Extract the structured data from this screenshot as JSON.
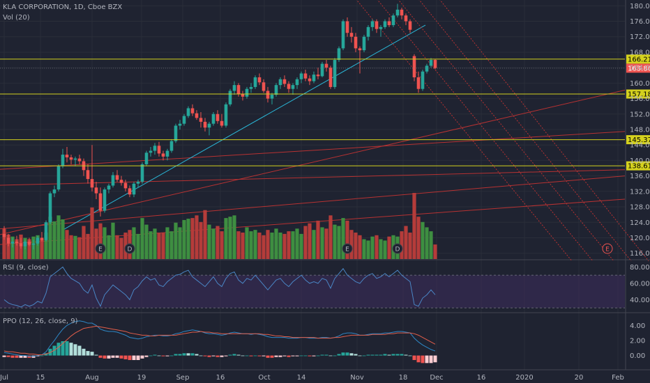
{
  "header": {
    "title": "KLA CORPORATION, 1D, Cboe BZX",
    "vol_label": "Vol (20)"
  },
  "rsi_label": "RSI (9, close)",
  "ppo_label": "PPO (12, 26, close, 9)",
  "colors": {
    "bg": "#1f2331",
    "grid": "#2a2e39",
    "up": "#26a69a",
    "down": "#ef5350",
    "vol_up": "#3e8e41",
    "vol_down": "#b53c3a",
    "hline": "#d4d11e",
    "trend_red": "#b83232",
    "trend_cyan": "#2ab6d6",
    "rsi_band": "#3c2d5c",
    "rsi_line": "#4a86c5",
    "ppo_line": "#2e89c8",
    "ppo_signal": "#e35e4a"
  },
  "chart_data": [
    {
      "type": "candlestick",
      "title": "KLA CORPORATION, 1D, Cboe BZX",
      "y_ticks": [
        "180.00",
        "176.00",
        "172.00",
        "168.00",
        "164.00",
        "160.00",
        "156.00",
        "152.00",
        "148.00",
        "144.00",
        "140.00",
        "136.00",
        "132.00",
        "128.00",
        "124.00",
        "120.00",
        "116.00"
      ],
      "ylim": [
        114.5,
        181.5
      ],
      "x_ticks": [
        "Jul",
        "15",
        "Aug",
        "19",
        "Sep",
        "16",
        "Oct",
        "14",
        "Nov",
        "18",
        "Dec",
        "16",
        "2020",
        "20",
        "Feb"
      ],
      "candles": [
        {
          "o": 121.0,
          "h": 123.0,
          "l": 119.5,
          "c": 120.2
        },
        {
          "o": 120.0,
          "h": 121.0,
          "l": 117.8,
          "c": 118.5
        },
        {
          "o": 118.5,
          "h": 120.0,
          "l": 117.5,
          "c": 119.0
        },
        {
          "o": 119.0,
          "h": 120.5,
          "l": 118.0,
          "c": 118.6
        },
        {
          "o": 118.6,
          "h": 120.0,
          "l": 117.2,
          "c": 117.8
        },
        {
          "o": 117.8,
          "h": 119.5,
          "l": 117.0,
          "c": 119.0
        },
        {
          "o": 119.0,
          "h": 120.0,
          "l": 117.8,
          "c": 118.2
        },
        {
          "o": 118.2,
          "h": 119.5,
          "l": 117.0,
          "c": 118.5
        },
        {
          "o": 118.5,
          "h": 120.5,
          "l": 118.0,
          "c": 120.0
        },
        {
          "o": 120.0,
          "h": 121.5,
          "l": 119.0,
          "c": 119.4
        },
        {
          "o": 119.4,
          "h": 124.5,
          "l": 119.0,
          "c": 124.0
        },
        {
          "o": 124.0,
          "h": 132.0,
          "l": 123.5,
          "c": 131.5
        },
        {
          "o": 131.5,
          "h": 133.5,
          "l": 130.5,
          "c": 132.5
        },
        {
          "o": 132.5,
          "h": 139.0,
          "l": 132.0,
          "c": 138.5
        },
        {
          "o": 138.5,
          "h": 143.0,
          "l": 138.0,
          "c": 141.5
        },
        {
          "o": 141.5,
          "h": 143.5,
          "l": 139.5,
          "c": 140.8
        },
        {
          "o": 140.8,
          "h": 141.5,
          "l": 139.0,
          "c": 140.2
        },
        {
          "o": 140.2,
          "h": 141.0,
          "l": 138.5,
          "c": 140.5
        },
        {
          "o": 140.5,
          "h": 141.5,
          "l": 139.0,
          "c": 139.8
        },
        {
          "o": 139.8,
          "h": 140.5,
          "l": 136.0,
          "c": 137.5
        },
        {
          "o": 137.5,
          "h": 139.0,
          "l": 134.0,
          "c": 135.2
        },
        {
          "o": 135.2,
          "h": 144.0,
          "l": 132.0,
          "c": 133.0
        },
        {
          "o": 133.0,
          "h": 134.5,
          "l": 130.0,
          "c": 131.5
        },
        {
          "o": 131.5,
          "h": 133.0,
          "l": 125.5,
          "c": 127.0
        },
        {
          "o": 127.0,
          "h": 133.0,
          "l": 126.5,
          "c": 132.5
        },
        {
          "o": 132.5,
          "h": 134.0,
          "l": 131.5,
          "c": 133.5
        },
        {
          "o": 133.5,
          "h": 137.0,
          "l": 133.0,
          "c": 136.2
        },
        {
          "o": 136.2,
          "h": 137.5,
          "l": 134.5,
          "c": 135.0
        },
        {
          "o": 135.0,
          "h": 136.0,
          "l": 133.5,
          "c": 134.2
        },
        {
          "o": 134.2,
          "h": 135.0,
          "l": 132.0,
          "c": 132.8
        },
        {
          "o": 132.8,
          "h": 133.5,
          "l": 130.5,
          "c": 131.2
        },
        {
          "o": 131.2,
          "h": 134.5,
          "l": 130.5,
          "c": 134.0
        },
        {
          "o": 134.0,
          "h": 135.0,
          "l": 133.0,
          "c": 134.5
        },
        {
          "o": 134.5,
          "h": 139.5,
          "l": 134.0,
          "c": 139.0
        },
        {
          "o": 139.0,
          "h": 142.5,
          "l": 138.5,
          "c": 142.0
        },
        {
          "o": 142.0,
          "h": 143.5,
          "l": 141.0,
          "c": 142.5
        },
        {
          "o": 142.5,
          "h": 144.5,
          "l": 141.5,
          "c": 143.8
        },
        {
          "o": 143.8,
          "h": 144.8,
          "l": 141.0,
          "c": 141.8
        },
        {
          "o": 141.8,
          "h": 142.5,
          "l": 140.0,
          "c": 141.0
        },
        {
          "o": 141.0,
          "h": 143.0,
          "l": 140.0,
          "c": 142.5
        },
        {
          "o": 142.5,
          "h": 145.5,
          "l": 142.0,
          "c": 145.0
        },
        {
          "o": 145.0,
          "h": 149.5,
          "l": 144.5,
          "c": 149.0
        },
        {
          "o": 149.0,
          "h": 150.5,
          "l": 148.0,
          "c": 149.5
        },
        {
          "o": 149.5,
          "h": 152.0,
          "l": 149.0,
          "c": 151.5
        },
        {
          "o": 151.5,
          "h": 154.0,
          "l": 151.0,
          "c": 153.5
        },
        {
          "o": 153.5,
          "h": 154.5,
          "l": 151.5,
          "c": 152.2
        },
        {
          "o": 152.2,
          "h": 153.0,
          "l": 150.5,
          "c": 151.0
        },
        {
          "o": 151.0,
          "h": 152.5,
          "l": 148.5,
          "c": 150.0
        },
        {
          "o": 150.0,
          "h": 151.0,
          "l": 147.5,
          "c": 148.5
        },
        {
          "o": 148.5,
          "h": 150.0,
          "l": 146.5,
          "c": 149.5
        },
        {
          "o": 149.5,
          "h": 152.5,
          "l": 149.0,
          "c": 152.0
        },
        {
          "o": 152.0,
          "h": 153.0,
          "l": 149.5,
          "c": 150.2
        },
        {
          "o": 150.2,
          "h": 152.0,
          "l": 148.5,
          "c": 149.0
        },
        {
          "o": 149.0,
          "h": 155.0,
          "l": 148.5,
          "c": 154.5
        },
        {
          "o": 154.5,
          "h": 158.5,
          "l": 154.0,
          "c": 158.0
        },
        {
          "o": 158.0,
          "h": 160.5,
          "l": 157.0,
          "c": 159.5
        },
        {
          "o": 159.5,
          "h": 160.0,
          "l": 156.5,
          "c": 157.2
        },
        {
          "o": 157.2,
          "h": 158.0,
          "l": 155.5,
          "c": 156.5
        },
        {
          "o": 156.5,
          "h": 159.0,
          "l": 156.0,
          "c": 158.5
        },
        {
          "o": 158.5,
          "h": 160.0,
          "l": 157.5,
          "c": 159.0
        },
        {
          "o": 159.0,
          "h": 162.0,
          "l": 158.5,
          "c": 161.5
        },
        {
          "o": 161.5,
          "h": 162.5,
          "l": 159.5,
          "c": 160.2
        },
        {
          "o": 160.2,
          "h": 161.0,
          "l": 157.5,
          "c": 158.0
        },
        {
          "o": 158.0,
          "h": 159.0,
          "l": 155.0,
          "c": 156.0
        },
        {
          "o": 156.0,
          "h": 157.5,
          "l": 154.5,
          "c": 157.0
        },
        {
          "o": 157.0,
          "h": 160.0,
          "l": 156.5,
          "c": 159.5
        },
        {
          "o": 159.5,
          "h": 161.5,
          "l": 158.5,
          "c": 161.0
        },
        {
          "o": 161.0,
          "h": 162.0,
          "l": 159.0,
          "c": 159.8
        },
        {
          "o": 159.8,
          "h": 160.5,
          "l": 157.5,
          "c": 158.5
        },
        {
          "o": 158.5,
          "h": 160.0,
          "l": 157.0,
          "c": 159.5
        },
        {
          "o": 159.5,
          "h": 161.5,
          "l": 158.5,
          "c": 161.0
        },
        {
          "o": 161.0,
          "h": 163.0,
          "l": 160.0,
          "c": 162.5
        },
        {
          "o": 162.5,
          "h": 163.5,
          "l": 160.5,
          "c": 161.2
        },
        {
          "o": 161.2,
          "h": 162.0,
          "l": 159.5,
          "c": 160.5
        },
        {
          "o": 160.5,
          "h": 163.0,
          "l": 160.0,
          "c": 162.2
        },
        {
          "o": 162.2,
          "h": 164.0,
          "l": 161.0,
          "c": 161.8
        },
        {
          "o": 161.8,
          "h": 165.5,
          "l": 161.5,
          "c": 165.0
        },
        {
          "o": 165.0,
          "h": 166.0,
          "l": 163.0,
          "c": 164.0
        },
        {
          "o": 164.0,
          "h": 164.5,
          "l": 158.5,
          "c": 159.0
        },
        {
          "o": 159.0,
          "h": 166.5,
          "l": 158.5,
          "c": 166.0
        },
        {
          "o": 166.0,
          "h": 169.5,
          "l": 165.5,
          "c": 169.0
        },
        {
          "o": 169.0,
          "h": 176.5,
          "l": 168.5,
          "c": 176.0
        },
        {
          "o": 176.0,
          "h": 177.0,
          "l": 172.0,
          "c": 173.0
        },
        {
          "o": 173.0,
          "h": 174.5,
          "l": 170.5,
          "c": 172.0
        },
        {
          "o": 172.0,
          "h": 173.0,
          "l": 168.0,
          "c": 169.0
        },
        {
          "o": 169.0,
          "h": 169.5,
          "l": 162.5,
          "c": 168.5
        },
        {
          "o": 168.5,
          "h": 172.5,
          "l": 168.0,
          "c": 172.0
        },
        {
          "o": 172.0,
          "h": 175.0,
          "l": 171.0,
          "c": 174.5
        },
        {
          "o": 174.5,
          "h": 176.5,
          "l": 173.5,
          "c": 176.0
        },
        {
          "o": 176.0,
          "h": 176.5,
          "l": 173.0,
          "c": 174.0
        },
        {
          "o": 174.0,
          "h": 175.0,
          "l": 172.0,
          "c": 174.5
        },
        {
          "o": 174.5,
          "h": 176.5,
          "l": 174.0,
          "c": 176.0
        },
        {
          "o": 176.0,
          "h": 177.0,
          "l": 174.5,
          "c": 175.0
        },
        {
          "o": 175.0,
          "h": 178.0,
          "l": 174.5,
          "c": 177.5
        },
        {
          "o": 177.5,
          "h": 180.5,
          "l": 177.0,
          "c": 179.0
        },
        {
          "o": 179.0,
          "h": 179.5,
          "l": 176.5,
          "c": 177.5
        },
        {
          "o": 177.5,
          "h": 178.0,
          "l": 175.0,
          "c": 176.0
        },
        {
          "o": 176.0,
          "h": 176.5,
          "l": 173.0,
          "c": 173.8
        },
        {
          "o": 167.0,
          "h": 167.5,
          "l": 160.5,
          "c": 161.5
        },
        {
          "o": 161.5,
          "h": 163.0,
          "l": 157.5,
          "c": 158.5
        },
        {
          "o": 158.5,
          "h": 163.5,
          "l": 158.0,
          "c": 163.0
        },
        {
          "o": 163.0,
          "h": 165.0,
          "l": 162.5,
          "c": 164.5
        },
        {
          "o": 164.5,
          "h": 166.5,
          "l": 164.0,
          "c": 166.0
        },
        {
          "o": 166.0,
          "h": 166.2,
          "l": 163.6,
          "c": 163.9
        }
      ],
      "price_levels": [
        {
          "value": 166.21,
          "label": "166.21"
        },
        {
          "value": 163.86,
          "label": "163.86"
        },
        {
          "value": 157.18,
          "label": "157.18"
        },
        {
          "value": 145.37,
          "label": "145.37"
        },
        {
          "value": 138.61,
          "label": "138.61"
        }
      ],
      "current_price": 163.86,
      "volume": [
        0.46,
        0.37,
        0.34,
        0.3,
        0.37,
        0.32,
        0.3,
        0.34,
        0.36,
        0.3,
        0.4,
        0.64,
        0.57,
        0.66,
        0.6,
        0.44,
        0.36,
        0.35,
        0.33,
        0.5,
        0.38,
        0.78,
        0.46,
        0.54,
        0.48,
        0.36,
        0.55,
        0.36,
        0.32,
        0.4,
        0.44,
        0.48,
        0.38,
        0.62,
        0.52,
        0.42,
        0.46,
        0.4,
        0.4,
        0.48,
        0.42,
        0.55,
        0.48,
        0.59,
        0.61,
        0.62,
        0.66,
        0.56,
        0.74,
        0.52,
        0.46,
        0.5,
        0.42,
        0.62,
        0.64,
        0.66,
        0.42,
        0.4,
        0.48,
        0.42,
        0.44,
        0.4,
        0.36,
        0.44,
        0.4,
        0.46,
        0.4,
        0.38,
        0.42,
        0.42,
        0.46,
        0.38,
        0.5,
        0.54,
        0.44,
        0.58,
        0.48,
        0.46,
        0.66,
        0.52,
        0.5,
        0.62,
        0.58,
        0.44,
        0.4,
        0.36,
        0.3,
        0.28,
        0.34,
        0.36,
        0.3,
        0.28,
        0.34,
        0.36,
        0.34,
        0.42,
        0.5,
        0.4,
        1.0,
        0.64,
        0.56,
        0.48,
        0.42,
        0.22
      ],
      "event_markers": [
        {
          "label": "E"
        },
        {
          "label": "D"
        },
        {
          "label": "E"
        },
        {
          "label": "D"
        },
        {
          "label": "E"
        }
      ]
    },
    {
      "type": "line",
      "title": "RSI (9, close)",
      "y_ticks": [
        "80.00",
        "60.00",
        "40.00"
      ],
      "ylim": [
        25,
        88
      ],
      "band": [
        30,
        70
      ],
      "values": [
        40,
        36,
        34,
        33,
        31,
        34,
        32,
        34,
        38,
        36,
        48,
        68,
        72,
        76,
        80,
        72,
        66,
        63,
        60,
        52,
        48,
        58,
        42,
        32,
        46,
        52,
        58,
        54,
        50,
        46,
        40,
        52,
        56,
        63,
        68,
        64,
        66,
        58,
        56,
        62,
        66,
        70,
        71,
        74,
        76,
        68,
        64,
        60,
        56,
        62,
        68,
        60,
        56,
        66,
        72,
        74,
        64,
        60,
        66,
        64,
        70,
        64,
        58,
        52,
        58,
        64,
        66,
        60,
        56,
        62,
        66,
        70,
        64,
        60,
        62,
        60,
        66,
        64,
        54,
        66,
        72,
        78,
        70,
        66,
        62,
        60,
        66,
        70,
        72,
        66,
        68,
        72,
        68,
        72,
        76,
        70,
        66,
        62,
        34,
        32,
        42,
        46,
        52,
        46
      ]
    },
    {
      "type": "line",
      "title": "PPO (12, 26, close, 9)",
      "y_ticks": [
        "4.00",
        "2.00",
        "0.00"
      ],
      "ylim": [
        -1.8,
        5.6
      ],
      "ppo": [
        0.4,
        0.3,
        0.2,
        0.1,
        0.0,
        0.0,
        -0.1,
        -0.1,
        0.0,
        0.1,
        0.5,
        1.3,
        2.0,
        2.8,
        3.5,
        4.0,
        4.3,
        4.5,
        4.6,
        4.5,
        4.3,
        4.3,
        4.0,
        3.5,
        3.3,
        3.2,
        3.2,
        3.1,
        2.9,
        2.7,
        2.4,
        2.3,
        2.2,
        2.3,
        2.5,
        2.6,
        2.7,
        2.7,
        2.6,
        2.6,
        2.7,
        2.9,
        3.0,
        3.2,
        3.3,
        3.4,
        3.3,
        3.2,
        3.0,
        2.9,
        2.9,
        2.8,
        2.7,
        2.8,
        3.0,
        3.1,
        3.0,
        2.9,
        2.9,
        2.8,
        2.9,
        2.8,
        2.7,
        2.5,
        2.4,
        2.4,
        2.4,
        2.4,
        2.3,
        2.3,
        2.3,
        2.4,
        2.4,
        2.3,
        2.3,
        2.3,
        2.4,
        2.4,
        2.3,
        2.4,
        2.6,
        2.9,
        3.0,
        3.0,
        2.9,
        2.7,
        2.7,
        2.8,
        2.9,
        2.9,
        2.9,
        3.0,
        3.0,
        3.1,
        3.2,
        3.2,
        3.1,
        3.0,
        2.3,
        1.8,
        1.4,
        1.1,
        0.8,
        0.6
      ],
      "signal": [
        0.6,
        0.5,
        0.5,
        0.4,
        0.3,
        0.3,
        0.2,
        0.2,
        0.1,
        0.1,
        0.2,
        0.4,
        0.7,
        1.1,
        1.6,
        2.1,
        2.6,
        3.0,
        3.3,
        3.6,
        3.7,
        3.8,
        3.9,
        3.8,
        3.7,
        3.6,
        3.5,
        3.4,
        3.3,
        3.2,
        3.0,
        2.9,
        2.8,
        2.7,
        2.7,
        2.6,
        2.6,
        2.7,
        2.7,
        2.7,
        2.7,
        2.7,
        2.8,
        2.9,
        3.0,
        3.1,
        3.1,
        3.2,
        3.1,
        3.1,
        3.0,
        3.0,
        2.9,
        2.9,
        2.9,
        2.9,
        2.9,
        2.9,
        2.9,
        2.9,
        2.9,
        2.9,
        2.8,
        2.8,
        2.7,
        2.6,
        2.6,
        2.5,
        2.5,
        2.4,
        2.4,
        2.4,
        2.4,
        2.4,
        2.4,
        2.3,
        2.3,
        2.3,
        2.3,
        2.4,
        2.4,
        2.5,
        2.6,
        2.7,
        2.7,
        2.7,
        2.7,
        2.7,
        2.8,
        2.8,
        2.8,
        2.8,
        2.9,
        2.9,
        3.0,
        3.0,
        3.0,
        3.0,
        2.9,
        2.7,
        2.4,
        2.1,
        1.8,
        1.5
      ]
    }
  ]
}
